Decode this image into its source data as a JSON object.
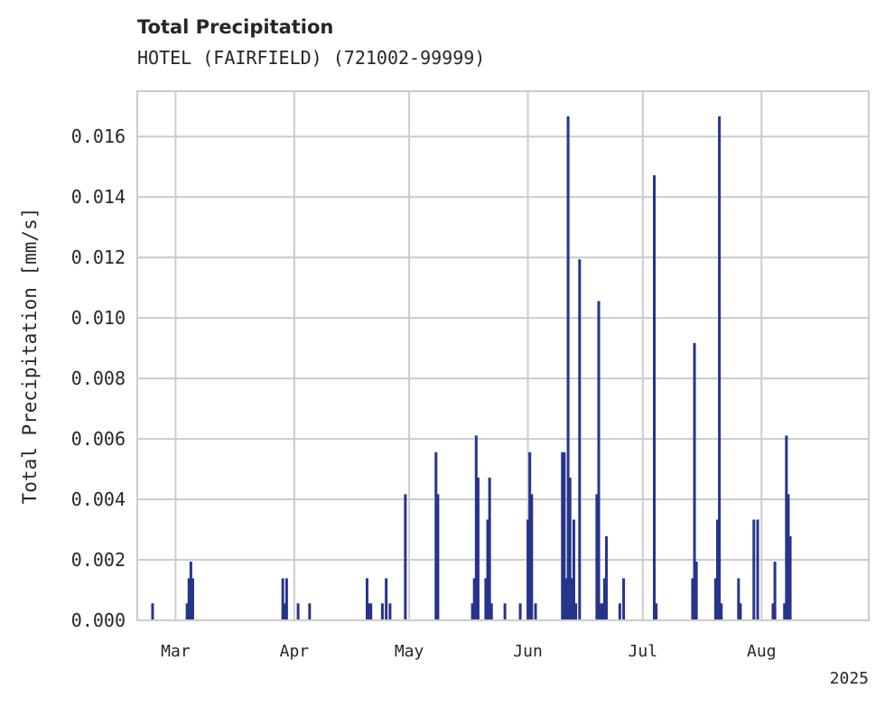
{
  "title": "Total Precipitation",
  "subtitle": "HOTEL (FAIRFIELD) (721002-99999)",
  "colors": {
    "bar": "#27348b",
    "grid": "#cccccc",
    "axis": "#cccccc",
    "text": "#262626"
  },
  "chart_data": {
    "type": "bar",
    "title": "Total Precipitation",
    "subtitle": "HOTEL (FAIRFIELD) (721002-99999)",
    "xlabel": "",
    "ylabel": "Total Precipitation [mm/s]",
    "year_label": "2025",
    "xlim": [
      "2025-02-19",
      "2025-08-29"
    ],
    "ylim": [
      0,
      0.0175
    ],
    "grid": true,
    "y_ticks": [
      "0.000",
      "0.002",
      "0.004",
      "0.006",
      "0.008",
      "0.010",
      "0.012",
      "0.014",
      "0.016"
    ],
    "x_ticks": [
      {
        "date": "2025-03-01",
        "label": "Mar"
      },
      {
        "date": "2025-04-01",
        "label": "Apr"
      },
      {
        "date": "2025-05-01",
        "label": "May"
      },
      {
        "date": "2025-06-01",
        "label": "Jun"
      },
      {
        "date": "2025-07-01",
        "label": "Jul"
      },
      {
        "date": "2025-08-01",
        "label": "Aug"
      }
    ],
    "series": [
      {
        "points": [
          {
            "x": "2025-02-23",
            "y": 0.00056
          },
          {
            "x": "2025-03-04",
            "y": 0.00056
          },
          {
            "x": "2025-03-04T12:00",
            "y": 0.00139
          },
          {
            "x": "2025-03-05",
            "y": 0.00194
          },
          {
            "x": "2025-03-05T12:00",
            "y": 0.00139
          },
          {
            "x": "2025-03-29",
            "y": 0.00139
          },
          {
            "x": "2025-03-29T12:00",
            "y": 0.00056
          },
          {
            "x": "2025-03-30",
            "y": 0.00139
          },
          {
            "x": "2025-04-02",
            "y": 0.00056
          },
          {
            "x": "2025-04-05",
            "y": 0.00056
          },
          {
            "x": "2025-04-20",
            "y": 0.00139
          },
          {
            "x": "2025-04-20T12:00",
            "y": 0.00056
          },
          {
            "x": "2025-04-21",
            "y": 0.00056
          },
          {
            "x": "2025-04-24",
            "y": 0.00056
          },
          {
            "x": "2025-04-25",
            "y": 0.00139
          },
          {
            "x": "2025-04-26",
            "y": 0.00056
          },
          {
            "x": "2025-04-30",
            "y": 0.00417
          },
          {
            "x": "2025-05-08",
            "y": 0.00556
          },
          {
            "x": "2025-05-08T12:00",
            "y": 0.00417
          },
          {
            "x": "2025-05-17T12:00",
            "y": 0.00056
          },
          {
            "x": "2025-05-18",
            "y": 0.00139
          },
          {
            "x": "2025-05-18T12:00",
            "y": 0.00611
          },
          {
            "x": "2025-05-19",
            "y": 0.00472
          },
          {
            "x": "2025-05-21",
            "y": 0.00139
          },
          {
            "x": "2025-05-21T12:00",
            "y": 0.00333
          },
          {
            "x": "2025-05-22",
            "y": 0.00472
          },
          {
            "x": "2025-05-22T12:00",
            "y": 0.00056
          },
          {
            "x": "2025-05-26",
            "y": 0.00056
          },
          {
            "x": "2025-05-30",
            "y": 0.00056
          },
          {
            "x": "2025-06-01",
            "y": 0.00333
          },
          {
            "x": "2025-06-01T12:00",
            "y": 0.00556
          },
          {
            "x": "2025-06-02",
            "y": 0.00417
          },
          {
            "x": "2025-06-03",
            "y": 0.00056
          },
          {
            "x": "2025-06-10",
            "y": 0.00556
          },
          {
            "x": "2025-06-10T12:00",
            "y": 0.00556
          },
          {
            "x": "2025-06-11",
            "y": 0.00139
          },
          {
            "x": "2025-06-11T12:00",
            "y": 0.01667
          },
          {
            "x": "2025-06-12",
            "y": 0.00472
          },
          {
            "x": "2025-06-12T12:00",
            "y": 0.00139
          },
          {
            "x": "2025-06-13",
            "y": 0.00333
          },
          {
            "x": "2025-06-13T12:00",
            "y": 0.00056
          },
          {
            "x": "2025-06-14T12:00",
            "y": 0.01194
          },
          {
            "x": "2025-06-19",
            "y": 0.00417
          },
          {
            "x": "2025-06-19T12:00",
            "y": 0.01056
          },
          {
            "x": "2025-06-20",
            "y": 0.00056
          },
          {
            "x": "2025-06-20T12:00",
            "y": 0.00056
          },
          {
            "x": "2025-06-21",
            "y": 0.00139
          },
          {
            "x": "2025-06-21T12:00",
            "y": 0.00278
          },
          {
            "x": "2025-06-25",
            "y": 0.00056
          },
          {
            "x": "2025-06-26",
            "y": 0.00139
          },
          {
            "x": "2025-07-04",
            "y": 0.01472
          },
          {
            "x": "2025-07-04T12:00",
            "y": 0.00056
          },
          {
            "x": "2025-07-14",
            "y": 0.00139
          },
          {
            "x": "2025-07-14T12:00",
            "y": 0.00917
          },
          {
            "x": "2025-07-15",
            "y": 0.00194
          },
          {
            "x": "2025-07-20",
            "y": 0.00139
          },
          {
            "x": "2025-07-20T12:00",
            "y": 0.00333
          },
          {
            "x": "2025-07-21",
            "y": 0.01667
          },
          {
            "x": "2025-07-21T12:00",
            "y": 0.00056
          },
          {
            "x": "2025-07-26",
            "y": 0.00139
          },
          {
            "x": "2025-07-26T12:00",
            "y": 0.00056
          },
          {
            "x": "2025-07-30",
            "y": 0.00333
          },
          {
            "x": "2025-07-31",
            "y": 0.00333
          },
          {
            "x": "2025-08-04",
            "y": 0.00056
          },
          {
            "x": "2025-08-04T12:00",
            "y": 0.00194
          },
          {
            "x": "2025-08-07",
            "y": 0.00056
          },
          {
            "x": "2025-08-07T12:00",
            "y": 0.00611
          },
          {
            "x": "2025-08-08",
            "y": 0.00417
          },
          {
            "x": "2025-08-08T12:00",
            "y": 0.00278
          }
        ]
      }
    ]
  }
}
